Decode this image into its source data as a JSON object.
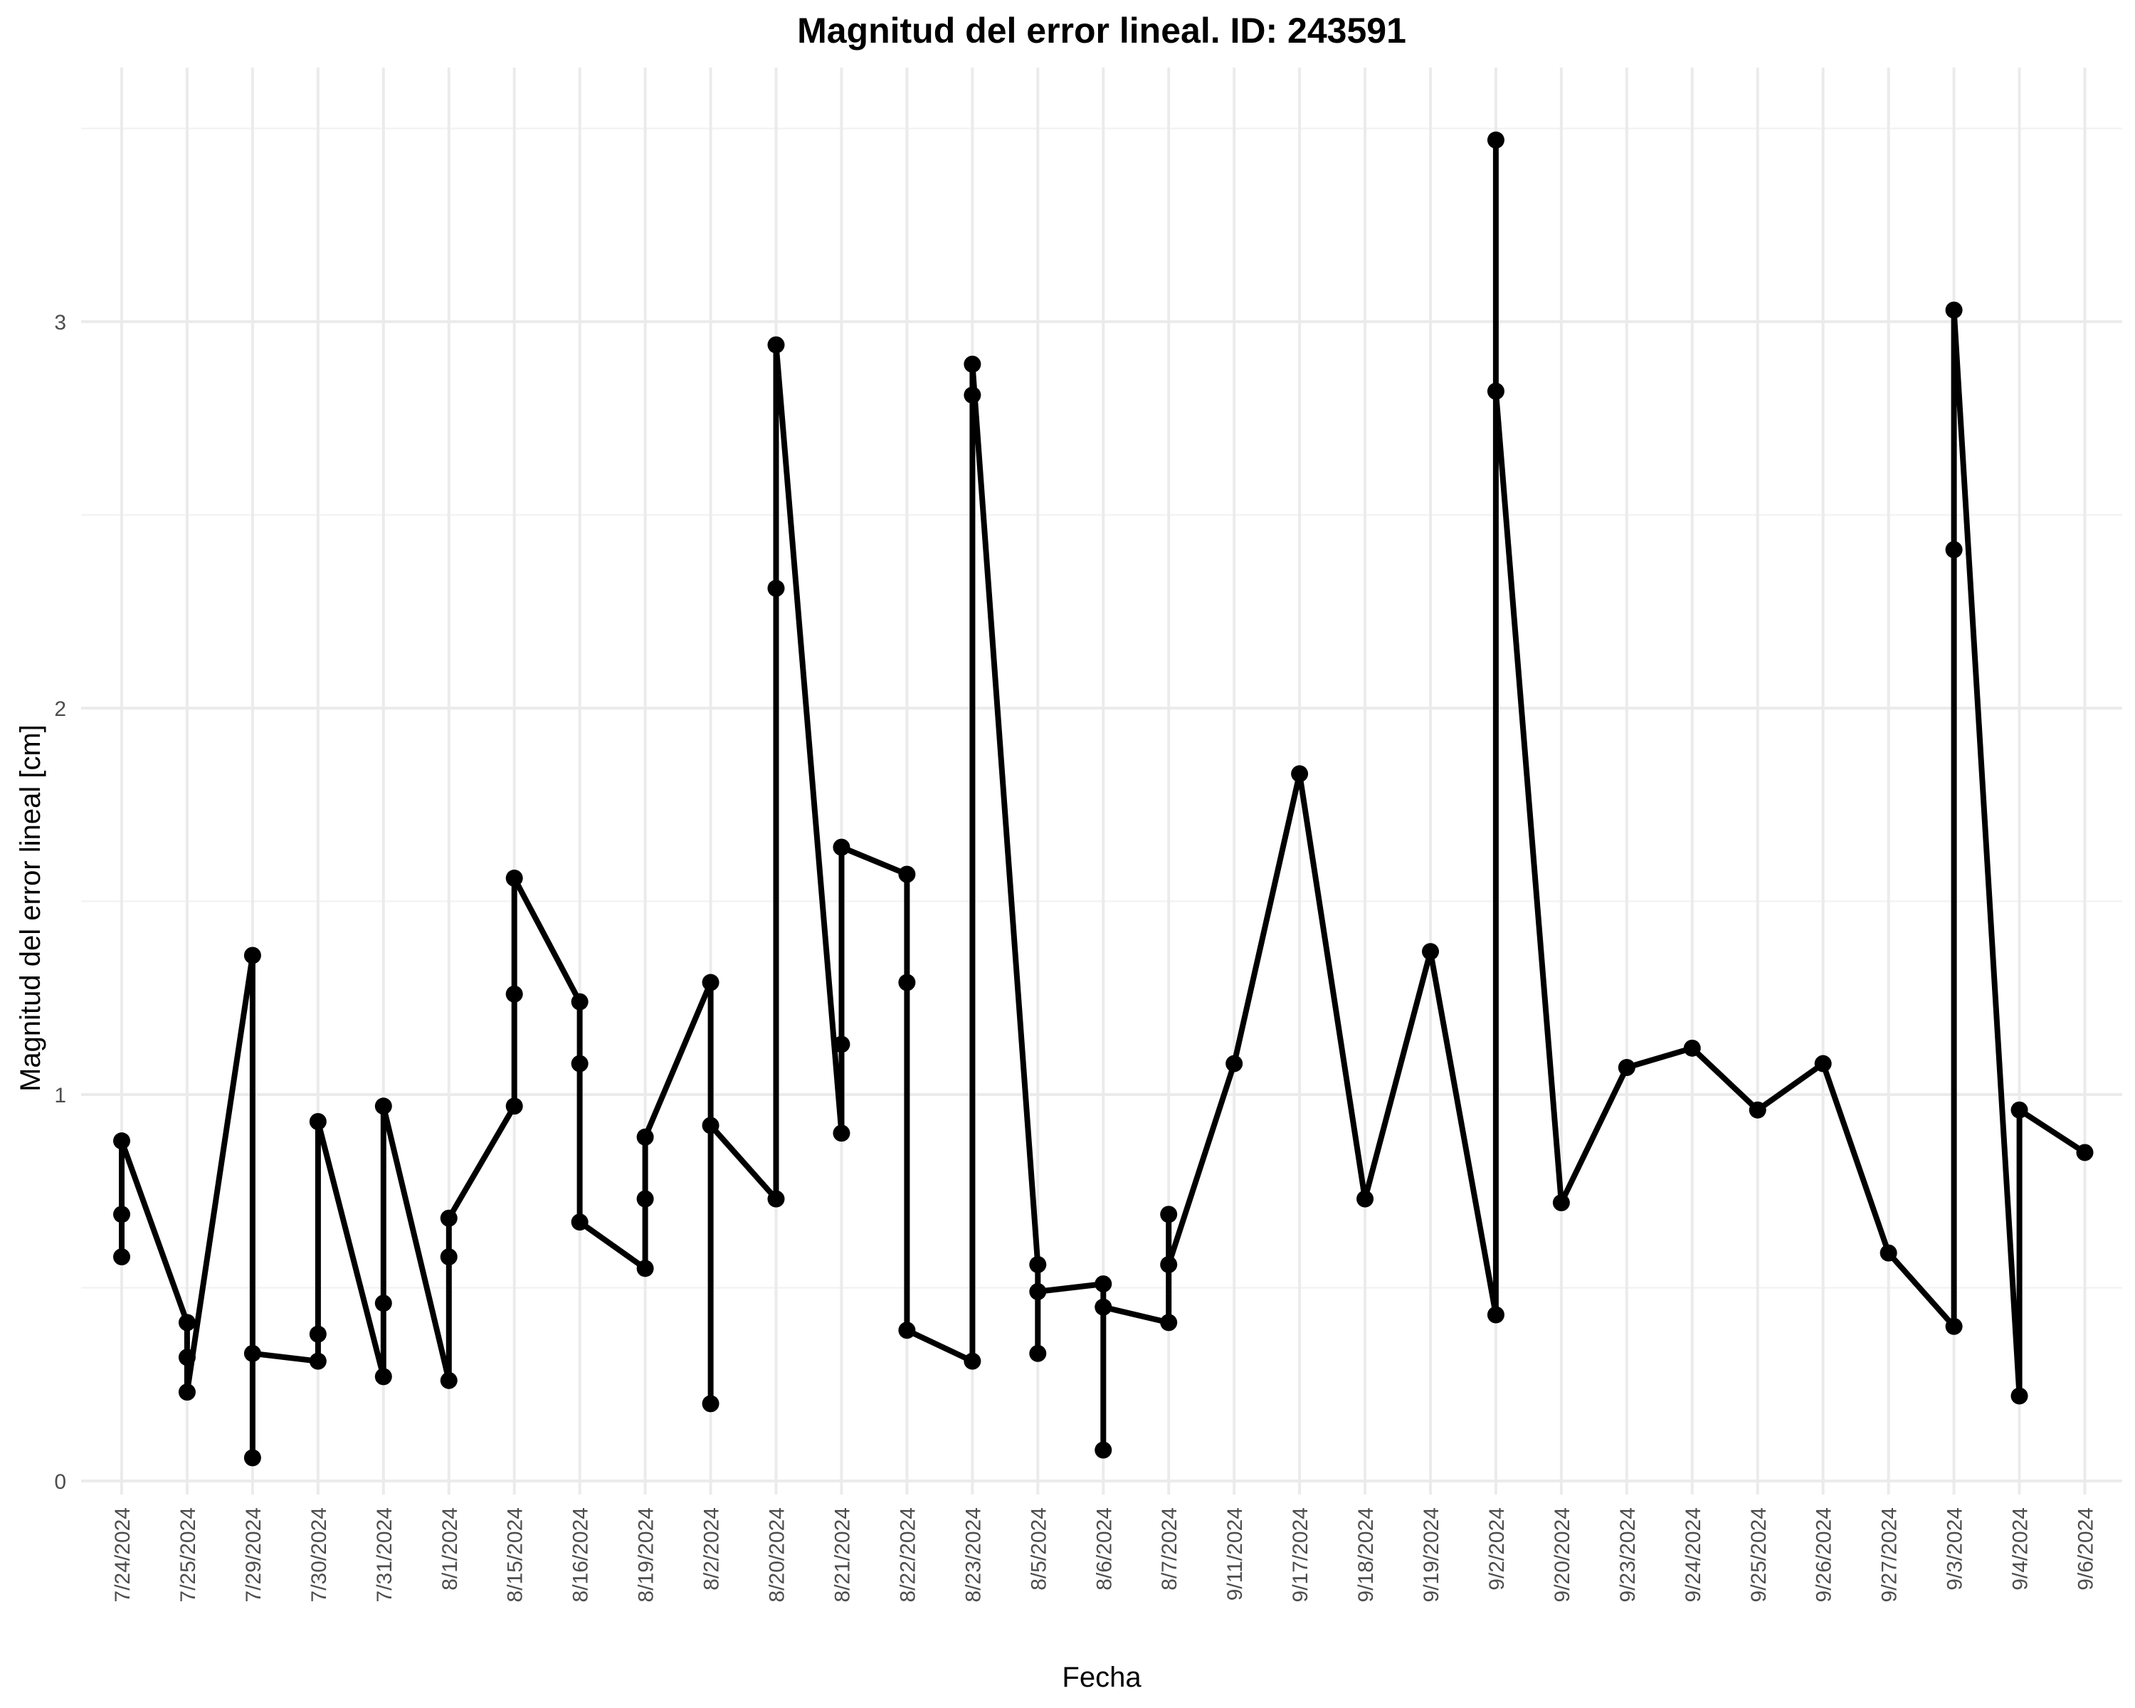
{
  "chart_data": {
    "type": "line",
    "title": "Magnitud del error lineal. ID: 243591",
    "xlabel": "Fecha",
    "ylabel": "Magnitud del error lineal [cm]",
    "categories": [
      "7/24/2024",
      "7/25/2024",
      "7/29/2024",
      "7/30/2024",
      "7/31/2024",
      "8/1/2024",
      "8/15/2024",
      "8/16/2024",
      "8/19/2024",
      "8/2/2024",
      "8/20/2024",
      "8/21/2024",
      "8/22/2024",
      "8/23/2024",
      "8/5/2024",
      "8/6/2024",
      "8/7/2024",
      "9/11/2024",
      "9/17/2024",
      "9/18/2024",
      "9/19/2024",
      "9/2/2024",
      "9/20/2024",
      "9/23/2024",
      "9/24/2024",
      "9/25/2024",
      "9/26/2024",
      "9/27/2024",
      "9/3/2024",
      "9/4/2024",
      "9/6/2024"
    ],
    "y_ticks": [
      0,
      1,
      2,
      3
    ],
    "ylim": [
      -0.08,
      3.5
    ],
    "grid": true,
    "series": [
      {
        "points": [
          [
            "7/24/2024",
            0.58
          ],
          [
            "7/24/2024",
            0.69
          ],
          [
            "7/24/2024",
            0.88
          ],
          [
            "7/25/2024",
            0.41
          ],
          [
            "7/25/2024",
            0.32
          ],
          [
            "7/25/2024",
            0.23
          ],
          [
            "7/29/2024",
            1.36
          ],
          [
            "7/29/2024",
            0.06
          ],
          [
            "7/29/2024",
            0.33
          ],
          [
            "7/30/2024",
            0.31
          ],
          [
            "7/30/2024",
            0.38
          ],
          [
            "7/30/2024",
            0.93
          ],
          [
            "7/31/2024",
            0.27
          ],
          [
            "7/31/2024",
            0.46
          ],
          [
            "7/31/2024",
            0.97
          ],
          [
            "8/1/2024",
            0.26
          ],
          [
            "8/1/2024",
            0.58
          ],
          [
            "8/1/2024",
            0.68
          ],
          [
            "8/15/2024",
            0.97
          ],
          [
            "8/15/2024",
            1.26
          ],
          [
            "8/15/2024",
            1.56
          ],
          [
            "8/16/2024",
            1.24
          ],
          [
            "8/16/2024",
            1.08
          ],
          [
            "8/16/2024",
            0.67
          ],
          [
            "8/19/2024",
            0.55
          ],
          [
            "8/19/2024",
            0.73
          ],
          [
            "8/19/2024",
            0.89
          ],
          [
            "8/2/2024",
            1.29
          ],
          [
            "8/2/2024",
            0.2
          ],
          [
            "8/2/2024",
            0.92
          ],
          [
            "8/20/2024",
            0.73
          ],
          [
            "8/20/2024",
            2.31
          ],
          [
            "8/20/2024",
            2.94
          ],
          [
            "8/21/2024",
            0.9
          ],
          [
            "8/21/2024",
            1.13
          ],
          [
            "8/21/2024",
            1.64
          ],
          [
            "8/22/2024",
            1.57
          ],
          [
            "8/22/2024",
            1.29
          ],
          [
            "8/22/2024",
            0.39
          ],
          [
            "8/23/2024",
            0.31
          ],
          [
            "8/23/2024",
            2.81
          ],
          [
            "8/23/2024",
            2.89
          ],
          [
            "8/5/2024",
            0.56
          ],
          [
            "8/5/2024",
            0.33
          ],
          [
            "8/5/2024",
            0.49
          ],
          [
            "8/6/2024",
            0.51
          ],
          [
            "8/6/2024",
            0.08
          ],
          [
            "8/6/2024",
            0.45
          ],
          [
            "8/7/2024",
            0.41
          ],
          [
            "8/7/2024",
            0.69
          ],
          [
            "8/7/2024",
            0.56
          ],
          [
            "9/11/2024",
            1.08
          ],
          [
            "9/17/2024",
            1.83
          ],
          [
            "9/18/2024",
            0.73
          ],
          [
            "9/19/2024",
            1.37
          ],
          [
            "9/2/2024",
            0.43
          ],
          [
            "9/2/2024",
            3.47
          ],
          [
            "9/2/2024",
            2.82
          ],
          [
            "9/20/2024",
            0.72
          ],
          [
            "9/23/2024",
            1.07
          ],
          [
            "9/24/2024",
            1.12
          ],
          [
            "9/25/2024",
            0.96
          ],
          [
            "9/26/2024",
            1.08
          ],
          [
            "9/27/2024",
            0.59
          ],
          [
            "9/3/2024",
            0.4
          ],
          [
            "9/3/2024",
            2.41
          ],
          [
            "9/3/2024",
            3.03
          ],
          [
            "9/4/2024",
            0.22
          ],
          [
            "9/4/2024",
            0.96
          ],
          [
            "9/6/2024",
            0.85
          ]
        ]
      }
    ]
  }
}
